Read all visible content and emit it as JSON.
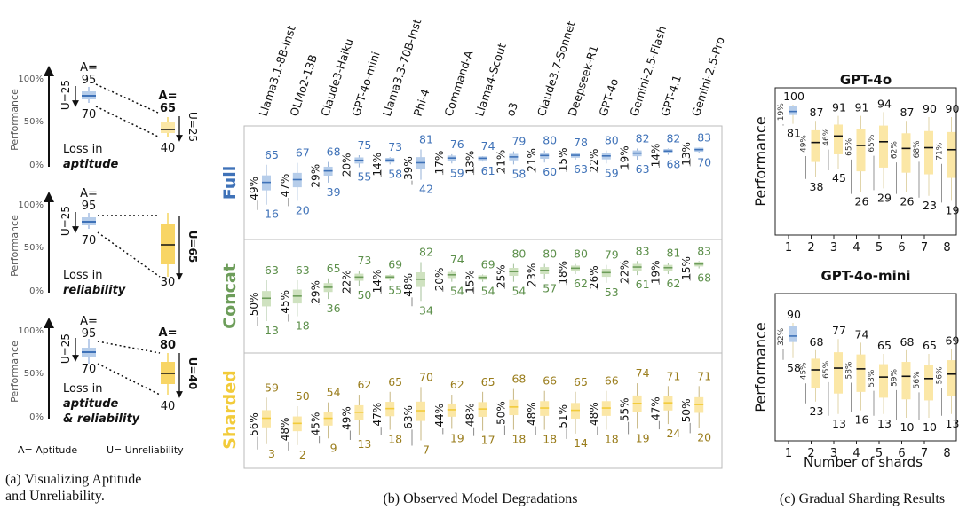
{
  "colors": {
    "blue": "#3f72b8",
    "blue_light": "#b6cdea",
    "green": "#6d9d5a",
    "green_text": "#5c8f4a",
    "green_light": "#cfe2c0",
    "yellow": "#f2cb3a",
    "yellow_light": "#fbe7a6",
    "gold_text": "#9a7d1c",
    "gray": "#888888",
    "text": "#222222"
  },
  "panel_a": {
    "caption_line1": "(a) Visualizing Aptitude",
    "caption_line2": "and Unreliability.",
    "y_label": "Performance",
    "ticks": [
      "0%",
      "50%",
      "100%"
    ],
    "legend_a": "A= Aptitude",
    "legend_u": "U= Unreliability",
    "rows": [
      {
        "left": {
          "top": "95",
          "bottom": "70",
          "a_label": "A=",
          "u_label": "U=25"
        },
        "right": {
          "a_label": "A=",
          "a_value": "65",
          "bottom": "40",
          "u_label": "U=25"
        },
        "loss_line1": "Loss in",
        "loss_line2": "aptitude",
        "loss_line3": ""
      },
      {
        "left": {
          "top": "95",
          "bottom": "70",
          "a_label": "A=",
          "u_label": "U=25"
        },
        "right": {
          "a_label": "",
          "a_value": "",
          "bottom": "30",
          "u_label": "U=65"
        },
        "loss_line1": "Loss in",
        "loss_line2": "reliability",
        "loss_line3": ""
      },
      {
        "left": {
          "top": "95",
          "bottom": "70",
          "a_label": "A=",
          "u_label": "U=25"
        },
        "right": {
          "a_label": "A=",
          "a_value": "80",
          "bottom": "40",
          "u_label": "U=40"
        },
        "loss_line1": "Loss in",
        "loss_line2": "aptitude",
        "loss_line3": "& reliability"
      }
    ]
  },
  "chart_data": [
    {
      "type": "box",
      "caption": "(b) Observed Model Degradations",
      "models": [
        "Llama3.1-8B-Inst",
        "OLMo2-13B",
        "Claude3-Haiku",
        "GPT-4o-mini",
        "Llama3.3-70B-Inst",
        "Phi-4",
        "Command-A",
        "Llama4-Scout",
        "o3",
        "Claude3.7-Sonnet",
        "Deepseek-R1",
        "GPT-4o",
        "Gemini-2.5-Flash",
        "GPT-4.1",
        "Gemini-2.5-Pro"
      ],
      "rows": [
        {
          "name": "Full",
          "top": [
            65,
            67,
            68,
            75,
            73,
            81,
            76,
            74,
            79,
            80,
            78,
            80,
            82,
            82,
            83
          ],
          "bottom": [
            16,
            20,
            39,
            55,
            58,
            42,
            59,
            61,
            58,
            60,
            63,
            59,
            63,
            68,
            70
          ],
          "pct": [
            "49%",
            "47%",
            "29%",
            "20%",
            "14%",
            "39%",
            "17%",
            "13%",
            "21%",
            "21%",
            "15%",
            "22%",
            "19%",
            "14%",
            "13%"
          ]
        },
        {
          "name": "Concat",
          "top": [
            63,
            63,
            65,
            73,
            69,
            82,
            74,
            69,
            80,
            80,
            80,
            79,
            83,
            81,
            83
          ],
          "bottom": [
            13,
            18,
            36,
            50,
            55,
            34,
            54,
            54,
            54,
            57,
            62,
            53,
            61,
            62,
            68
          ],
          "pct": [
            "50%",
            "45%",
            "29%",
            "22%",
            "14%",
            "48%",
            "20%",
            "15%",
            "25%",
            "23%",
            "18%",
            "26%",
            "22%",
            "19%",
            "15%"
          ]
        },
        {
          "name": "Sharded",
          "top": [
            59,
            50,
            54,
            62,
            65,
            70,
            62,
            65,
            68,
            66,
            65,
            66,
            74,
            71,
            71
          ],
          "bottom": [
            3,
            2,
            9,
            13,
            18,
            7,
            19,
            17,
            18,
            18,
            14,
            18,
            19,
            24,
            20
          ],
          "pct": [
            "56%",
            "48%",
            "45%",
            "49%",
            "47%",
            "63%",
            "44%",
            "48%",
            "50%",
            "48%",
            "51%",
            "48%",
            "55%",
            "47%",
            "50%"
          ]
        }
      ]
    },
    {
      "type": "box",
      "caption": "(c) Gradual Sharding Results",
      "x_label": "Number of shards",
      "y_label": "Performance",
      "x": [
        1,
        2,
        3,
        4,
        5,
        6,
        7,
        8
      ],
      "panels": [
        {
          "title": "GPT-4o",
          "top": [
            100,
            87,
            91,
            91,
            94,
            87,
            90,
            90
          ],
          "bottom": [
            81,
            38,
            45,
            26,
            29,
            26,
            23,
            19
          ],
          "pct": [
            "19%",
            "49%",
            "46%",
            "65%",
            "65%",
            "62%",
            "68%",
            "71%"
          ]
        },
        {
          "title": "GPT-4o-mini",
          "top": [
            90,
            68,
            77,
            74,
            65,
            68,
            65,
            69
          ],
          "bottom": [
            58,
            23,
            13,
            16,
            13,
            10,
            10,
            13
          ],
          "pct": [
            "32%",
            "45%",
            "65%",
            "58%",
            "53%",
            "59%",
            "56%",
            "56%"
          ]
        }
      ]
    }
  ]
}
